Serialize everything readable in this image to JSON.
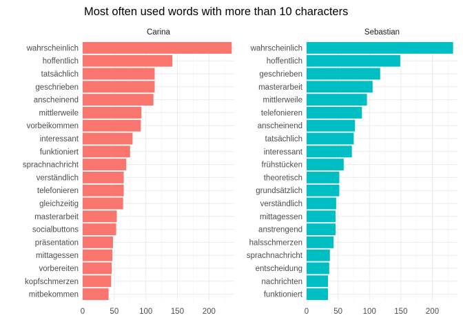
{
  "chart_data": {
    "type": "bar",
    "orientation": "horizontal",
    "title": "Most often used words with more than 10 characters",
    "xlim": [
      0,
      240
    ],
    "x_ticks": [
      0,
      50,
      100,
      150,
      200
    ],
    "grid": true,
    "legend": "none",
    "facets": [
      {
        "name": "Carina",
        "color": "#F8766D",
        "categories": [
          "wahrscheinlich",
          "hoffentlich",
          "tatsächlich",
          "geschrieben",
          "anscheinend",
          "mittlerweile",
          "vorbeikommen",
          "interessant",
          "funktioniert",
          "sprachnachricht",
          "verständlich",
          "telefonieren",
          "gleichzeitig",
          "masterarbeit",
          "socialbuttons",
          "präsentation",
          "mittagessen",
          "vorbereiten",
          "kopfschmerzen",
          "mitbekommen"
        ],
        "values": [
          236,
          142,
          114,
          114,
          112,
          93,
          92,
          79,
          75,
          69,
          65,
          65,
          64,
          54,
          53,
          48,
          47,
          46,
          45,
          41
        ]
      },
      {
        "name": "Sebastian",
        "color": "#00BFC4",
        "categories": [
          "wahrscheinlich",
          "hoffentlich",
          "geschrieben",
          "masterarbeit",
          "mittlerweile",
          "telefonieren",
          "anscheinend",
          "tatsächlich",
          "interessant",
          "frühstücken",
          "theoretisch",
          "grundsätzlich",
          "verständlich",
          "mittagessen",
          "anstrengend",
          "halsschmerzen",
          "sprachnachricht",
          "entscheidung",
          "nachrichten",
          "funktioniert"
        ],
        "values": [
          233,
          149,
          117,
          105,
          96,
          88,
          77,
          75,
          72,
          59,
          52,
          52,
          47,
          46,
          46,
          43,
          37,
          36,
          34,
          34
        ]
      }
    ]
  }
}
